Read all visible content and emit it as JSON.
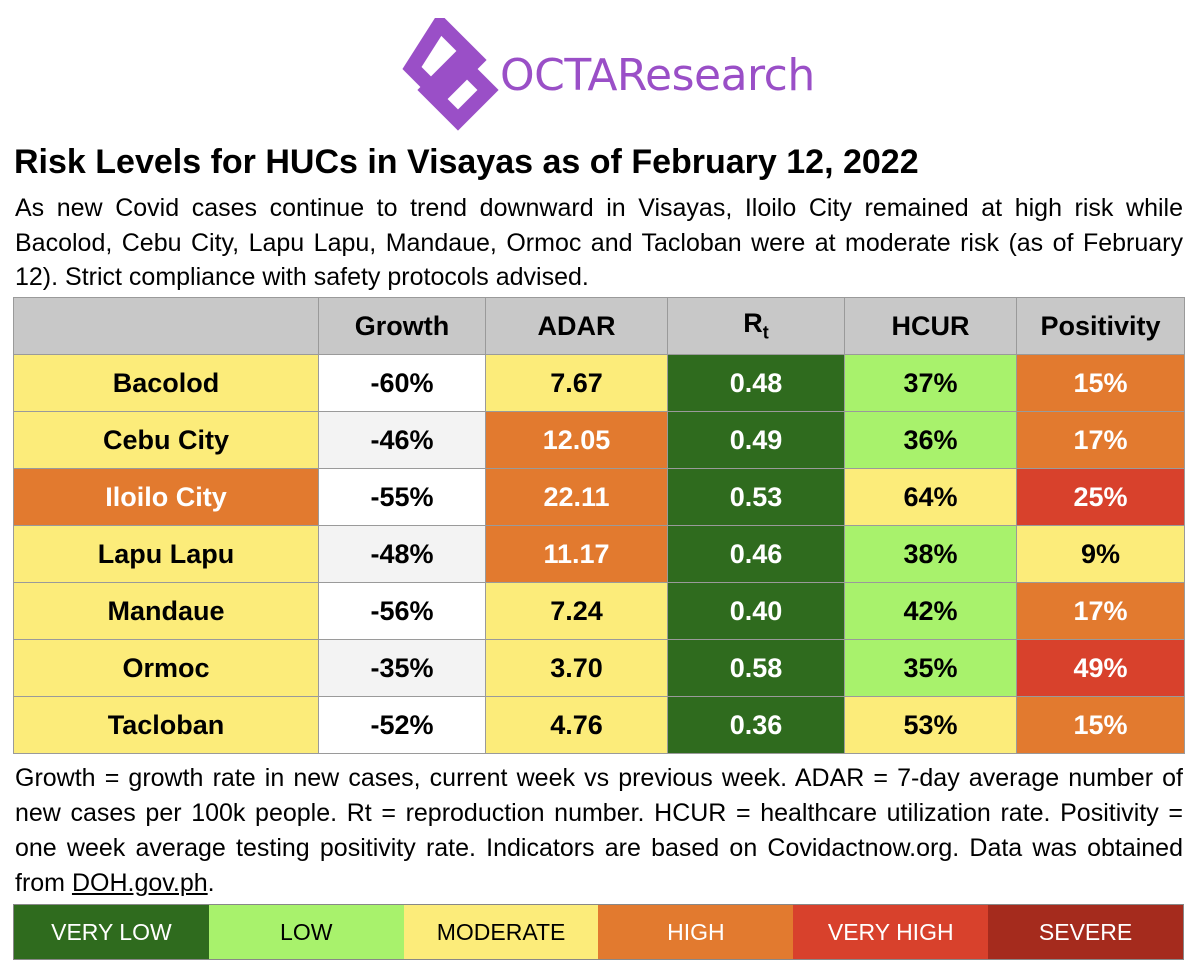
{
  "logo": {
    "text": "OCTAResearch"
  },
  "title": "Risk Levels for HUCs in Visayas as of February 12, 2022",
  "description": "As new Covid cases continue to trend downward in Visayas, Iloilo City remained at high risk while Bacolod, Cebu City, Lapu Lapu, Mandaue, Ormoc and Tacloban were at moderate risk (as of February 12). Strict compliance with safety protocols advised.",
  "table": {
    "header": [
      "Growth",
      "ADAR",
      {
        "main": "R",
        "sub": "t"
      },
      "HCUR",
      "Positivity"
    ],
    "rows": [
      {
        "cells": [
          "Bacolod",
          "-60%",
          "7.67",
          "0.48",
          "37%",
          "15%"
        ],
        "colors": [
          "#fcec7a",
          "#ffffff",
          "#fcec7a",
          "#2f6b1e",
          "#a8f26c",
          "#e27a2f"
        ]
      },
      {
        "cells": [
          "Cebu City",
          "-46%",
          "12.05",
          "0.49",
          "36%",
          "17%"
        ],
        "colors": [
          "#fcec7a",
          "#f3f3f3",
          "#e27a2f",
          "#2f6b1e",
          "#a8f26c",
          "#e27a2f"
        ]
      },
      {
        "cells": [
          "Iloilo City",
          "-55%",
          "22.11",
          "0.53",
          "64%",
          "25%"
        ],
        "colors": [
          "#e27a2f",
          "#ffffff",
          "#e27a2f",
          "#2f6b1e",
          "#fcec7a",
          "#d8412c"
        ]
      },
      {
        "cells": [
          "Lapu Lapu",
          "-48%",
          "11.17",
          "0.46",
          "38%",
          "9%"
        ],
        "colors": [
          "#fcec7a",
          "#f3f3f3",
          "#e27a2f",
          "#2f6b1e",
          "#a8f26c",
          "#fcec7a"
        ]
      },
      {
        "cells": [
          "Mandaue",
          "-56%",
          "7.24",
          "0.40",
          "42%",
          "17%"
        ],
        "colors": [
          "#fcec7a",
          "#ffffff",
          "#fcec7a",
          "#2f6b1e",
          "#a8f26c",
          "#e27a2f"
        ]
      },
      {
        "cells": [
          "Ormoc",
          "-35%",
          "3.70",
          "0.58",
          "35%",
          "49%"
        ],
        "colors": [
          "#fcec7a",
          "#f3f3f3",
          "#fcec7a",
          "#2f6b1e",
          "#a8f26c",
          "#d8412c"
        ]
      },
      {
        "cells": [
          "Tacloban",
          "-52%",
          "4.76",
          "0.36",
          "53%",
          "15%"
        ],
        "colors": [
          "#fcec7a",
          "#ffffff",
          "#fcec7a",
          "#2f6b1e",
          "#fcec7a",
          "#e27a2f"
        ]
      }
    ]
  },
  "footnote": {
    "text": "Growth = growth rate in new cases, current week vs previous week. ADAR = 7-day average number of new cases per 100k people. Rt = reproduction number. HCUR = healthcare utilization rate. Positivity = one week average testing positivity rate. Indicators are based on Covidactnow.org. Data was obtained from",
    "link": "DOH.gov.ph",
    "end": "."
  },
  "legend": [
    {
      "label": "VERY LOW",
      "color": "#2f6b1e"
    },
    {
      "label": "LOW",
      "color": "#a8f26c"
    },
    {
      "label": "MODERATE",
      "color": "#fcec7a"
    },
    {
      "label": "HIGH",
      "color": "#e27a2f"
    },
    {
      "label": "VERY HIGH",
      "color": "#d8412c"
    },
    {
      "label": "SEVERE",
      "color": "#a52b1d"
    }
  ]
}
